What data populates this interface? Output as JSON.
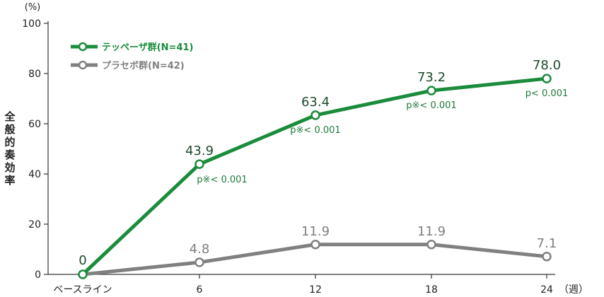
{
  "chart_data": {
    "type": "line",
    "y_unit": "(%)",
    "ylabel": "全般的奏効率",
    "x_unit": "（週）",
    "categories": [
      "ベースライン",
      "6",
      "12",
      "18",
      "24"
    ],
    "ylim": [
      0,
      100
    ],
    "yticks": [
      0,
      20,
      40,
      60,
      80,
      100
    ],
    "grid": false,
    "legend_position": "top-left",
    "series": [
      {
        "name": "テッペーザ群(N=41)",
        "color": "#1a8c3c",
        "values": [
          0,
          43.9,
          63.4,
          73.2,
          78.0
        ],
        "labels": [
          "0",
          "43.9",
          "63.4",
          "73.2",
          "78.0"
        ],
        "pvalues": [
          "",
          "p※< 0.001",
          "p※< 0.001",
          "p※< 0.001",
          "p< 0.001"
        ]
      },
      {
        "name": "プラセボ群(N=42)",
        "color": "#808080",
        "values": [
          0,
          4.8,
          11.9,
          11.9,
          7.1
        ],
        "labels": [
          "",
          "4.8",
          "11.9",
          "11.9",
          "7.1"
        ]
      }
    ]
  }
}
